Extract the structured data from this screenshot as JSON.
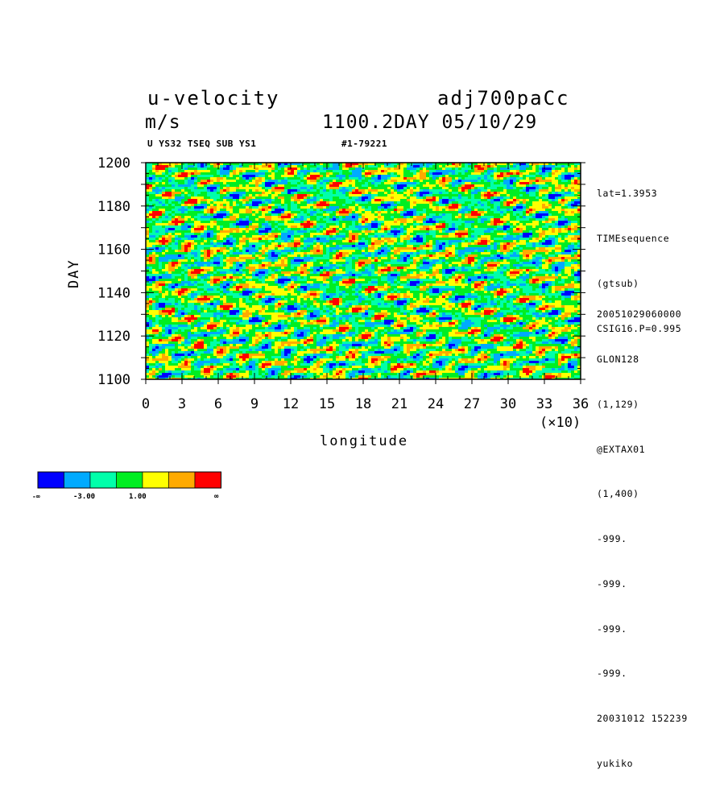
{
  "header": {
    "variable": "u-velocity",
    "run": "adj700paCc",
    "units": "m/s",
    "time": "1100.2DAY 05/10/29",
    "subtitle_left": "U YS32 TSEQ SUB YS1",
    "subtitle_right": "#1-79221"
  },
  "sidebar": {
    "top_lines": [
      "lat=1.3953",
      "TIMEsequence",
      "(gtsub)",
      "CSIG16.P=0.995"
    ],
    "bottom_lines": [
      "20051029060000",
      "GLON128",
      "(1,129)",
      "@EXTAX01",
      "(1,400)",
      "-999.",
      "-999.",
      "-999.",
      "-999.",
      "20031012 152239",
      "yukiko"
    ]
  },
  "colorbar": {
    "colors": [
      "#0000ff",
      "#00aaff",
      "#00ffaa",
      "#00ee22",
      "#ffff00",
      "#ffaa00",
      "#ff0000"
    ],
    "labels": [
      "-∞",
      "-3.00",
      "1.00",
      "∞"
    ]
  },
  "chart_data": {
    "type": "heatmap",
    "title": "u-velocity",
    "xlabel": "longitude",
    "ylabel": "DAY",
    "x_scale_note": "(×10)",
    "xlim": [
      0,
      36
    ],
    "ylim": [
      1100,
      1200
    ],
    "x_ticks": [
      "0",
      "3",
      "6",
      "9",
      "12",
      "15",
      "18",
      "21",
      "24",
      "27",
      "30",
      "33",
      "36"
    ],
    "y_ticks": [
      "1100",
      "1120",
      "1140",
      "1160",
      "1180",
      "1200"
    ],
    "color_levels": [
      "#0000ff",
      "#00aaff",
      "#00ffaa",
      "#00ee22",
      "#ffff00",
      "#ffaa00",
      "#ff0000"
    ],
    "field": "noisy longitude-time section, eastward-tilted streaks; dominant green/cyan/yellow with scattered blue and red patches"
  }
}
